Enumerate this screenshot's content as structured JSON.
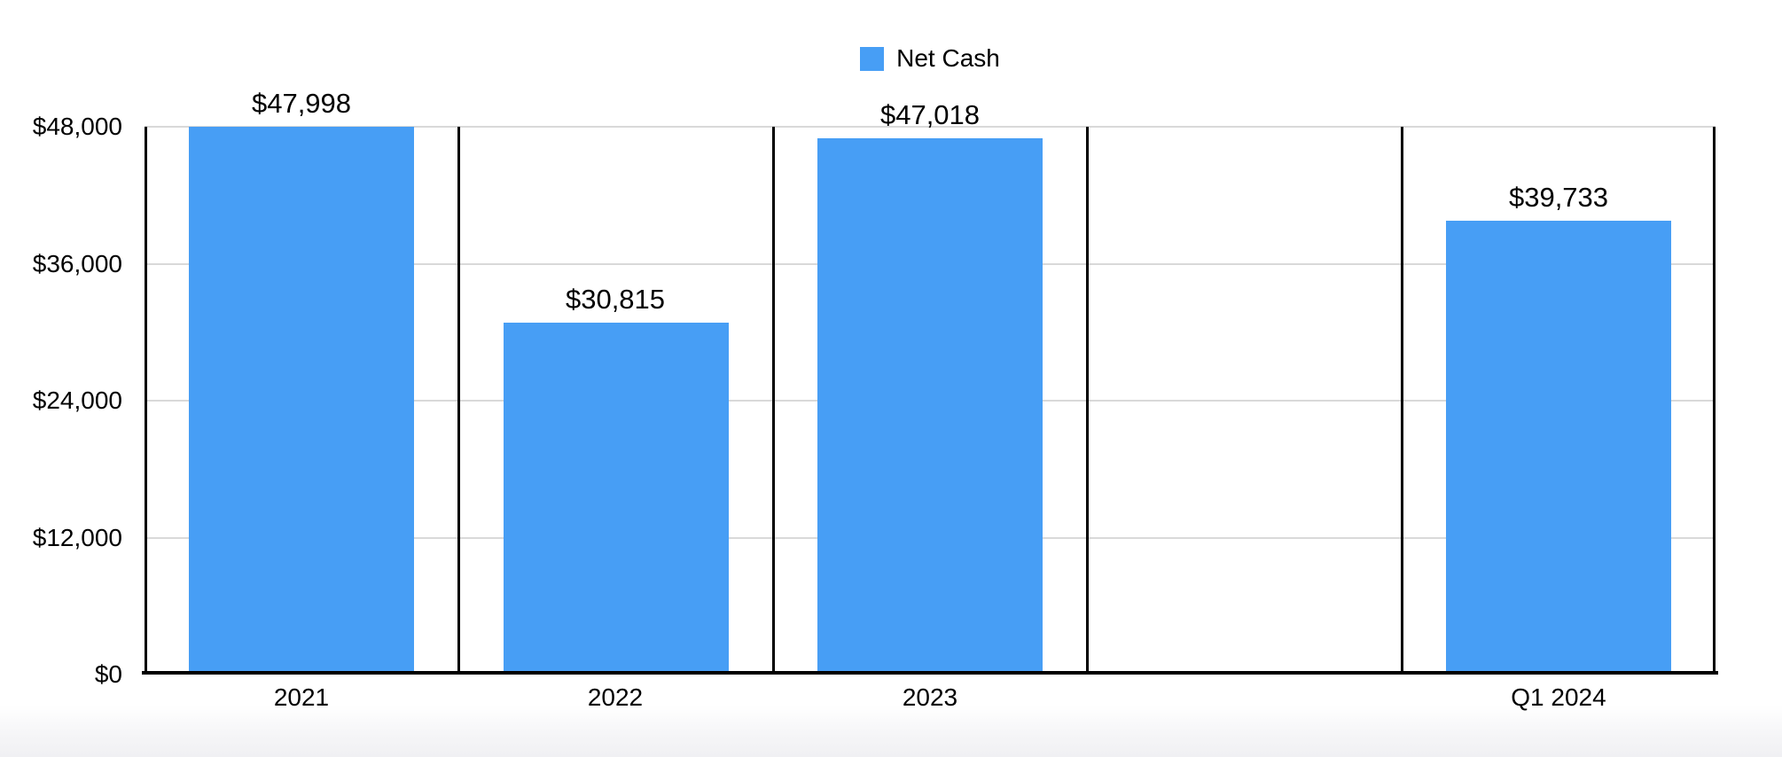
{
  "page": {
    "background": "#ffffff"
  },
  "legend": {
    "series_label": "Net Cash"
  },
  "chart_data": {
    "type": "bar",
    "title": "",
    "xlabel": "",
    "ylabel": "",
    "categories": [
      "2021",
      "2022",
      "2023",
      "",
      "Q1 2024"
    ],
    "series": [
      {
        "name": "Net Cash",
        "values": [
          47998,
          30815,
          47018,
          null,
          39733
        ],
        "value_labels": [
          "$47,998",
          "$30,815",
          "$47,018",
          null,
          "$39,733"
        ]
      }
    ],
    "ylim": [
      0,
      48000
    ],
    "yticks": [
      {
        "value": 0,
        "label": "$0"
      },
      {
        "value": 12000,
        "label": "$12,000"
      },
      {
        "value": 24000,
        "label": "$24,000"
      },
      {
        "value": 36000,
        "label": "$36,000"
      },
      {
        "value": 48000,
        "label": "$48,000"
      }
    ],
    "grid": "horizontal-gridlines-with-vertical-category-dividers",
    "legend_position": "top-center",
    "colors": {
      "bar": "#479EF5",
      "gridline": "#d9d9d9",
      "axis": "#000000",
      "text": "#000000"
    }
  }
}
